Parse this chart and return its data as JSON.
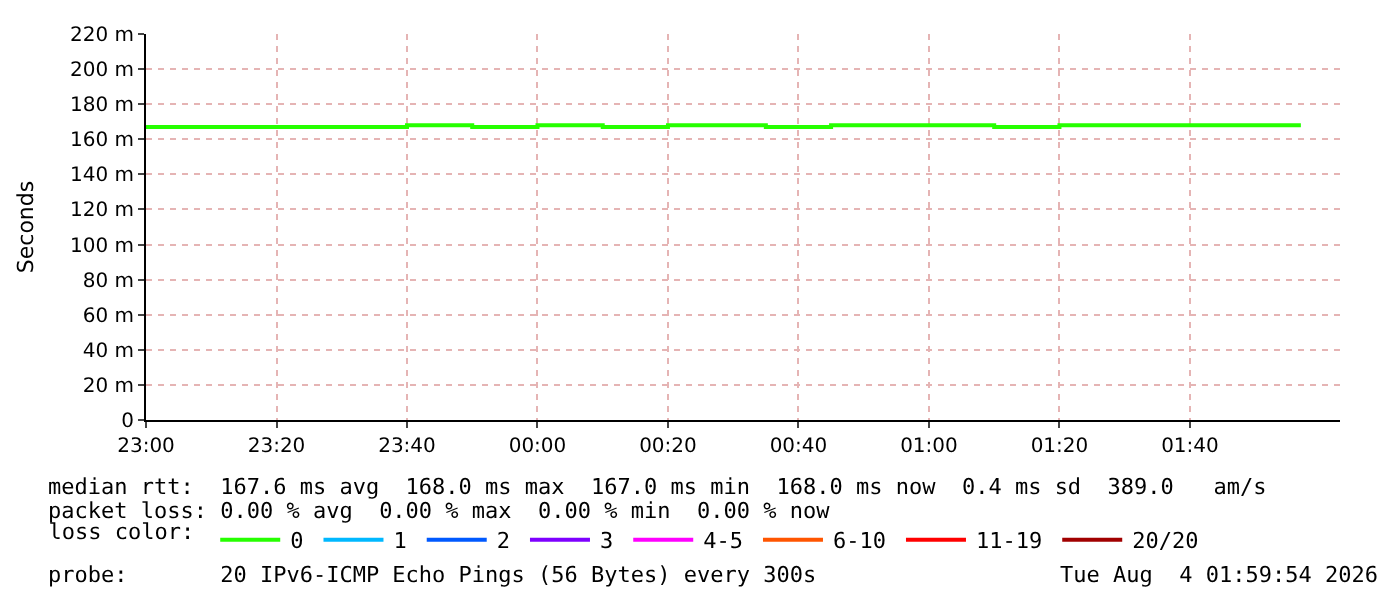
{
  "chart_data": {
    "type": "step",
    "ylabel": "Seconds",
    "x": [
      "2026-08-03T23:00",
      "2026-08-03T23:40",
      "2026-08-03T23:50",
      "2026-08-04T00:00",
      "2026-08-04T00:10",
      "2026-08-04T00:20",
      "2026-08-04T00:35",
      "2026-08-04T00:45",
      "2026-08-04T01:10",
      "2026-08-04T01:20",
      "2026-08-04T01:57"
    ],
    "series": [
      {
        "name": "0",
        "color": "#26ff00",
        "values": [
          167,
          168,
          167,
          168,
          167,
          168,
          167,
          168,
          167,
          168,
          168
        ]
      },
      {
        "name": "1",
        "color": "#00b8ff",
        "values": [
          null,
          null,
          null,
          null,
          null,
          null,
          null,
          null,
          null,
          null,
          null
        ]
      },
      {
        "name": "2",
        "color": "#0059ff",
        "values": [
          null,
          null,
          null,
          null,
          null,
          null,
          null,
          null,
          null,
          null,
          null
        ]
      },
      {
        "name": "3",
        "color": "#7e00ff",
        "values": [
          null,
          null,
          null,
          null,
          null,
          null,
          null,
          null,
          null,
          null,
          null
        ]
      },
      {
        "name": "4-5",
        "color": "#ff00ff",
        "values": [
          null,
          null,
          null,
          null,
          null,
          null,
          null,
          null,
          null,
          null,
          null
        ]
      },
      {
        "name": "6-10",
        "color": "#ff5500",
        "values": [
          null,
          null,
          null,
          null,
          null,
          null,
          null,
          null,
          null,
          null,
          null
        ]
      },
      {
        "name": "11-19",
        "color": "#ff0000",
        "values": [
          null,
          null,
          null,
          null,
          null,
          null,
          null,
          null,
          null,
          null,
          null
        ]
      },
      {
        "name": "20/20",
        "color": "#a10000",
        "values": [
          null,
          null,
          null,
          null,
          null,
          null,
          null,
          null,
          null,
          null,
          null
        ]
      }
    ],
    "legend_title": "loss color:",
    "legend": "bottom",
    "grid": true,
    "marker": "none",
    "line_style": "solid",
    "xlim": [
      "2026-08-03T23:00",
      "2026-08-04T02:03"
    ],
    "xticks": [
      {
        "value": "2026-08-03T23:00",
        "label": "23:00"
      },
      {
        "value": "2026-08-03T23:20",
        "label": "23:20"
      },
      {
        "value": "2026-08-03T23:40",
        "label": "23:40"
      },
      {
        "value": "2026-08-04T00:00",
        "label": "00:00"
      },
      {
        "value": "2026-08-04T00:20",
        "label": "00:20"
      },
      {
        "value": "2026-08-04T00:40",
        "label": "00:40"
      },
      {
        "value": "2026-08-04T01:00",
        "label": "01:00"
      },
      {
        "value": "2026-08-04T01:20",
        "label": "01:20"
      },
      {
        "value": "2026-08-04T01:40",
        "label": "01:40"
      }
    ],
    "ylim": [
      0,
      220
    ],
    "yticks": [
      0,
      {
        "value": 20,
        "label": "20 m"
      },
      {
        "value": 40,
        "label": "40 m"
      },
      {
        "value": 60,
        "label": "60 m"
      },
      {
        "value": 80,
        "label": "80 m"
      },
      {
        "value": 100,
        "label": "100 m"
      },
      {
        "value": 120,
        "label": "120 m"
      },
      {
        "value": 140,
        "label": "140 m"
      },
      {
        "value": 160,
        "label": "160 m"
      },
      {
        "value": 180,
        "label": "180 m"
      },
      {
        "value": 200,
        "label": "200 m"
      },
      {
        "value": 220,
        "label": "220 m"
      }
    ],
    "annotations": [
      "median rtt:  167.6 ms avg  168.0 ms max  167.0 ms min  168.0 ms now  0.4 ms sd  389.0   am/s",
      "packet loss: 0.00 % avg  0.00 % max  0.00 % min  0.00 % now",
      "probe:       20 IPv6-ICMP Echo Pings (56 Bytes) every 300s",
      "Tue Aug  4 01:59:54 2026"
    ]
  }
}
